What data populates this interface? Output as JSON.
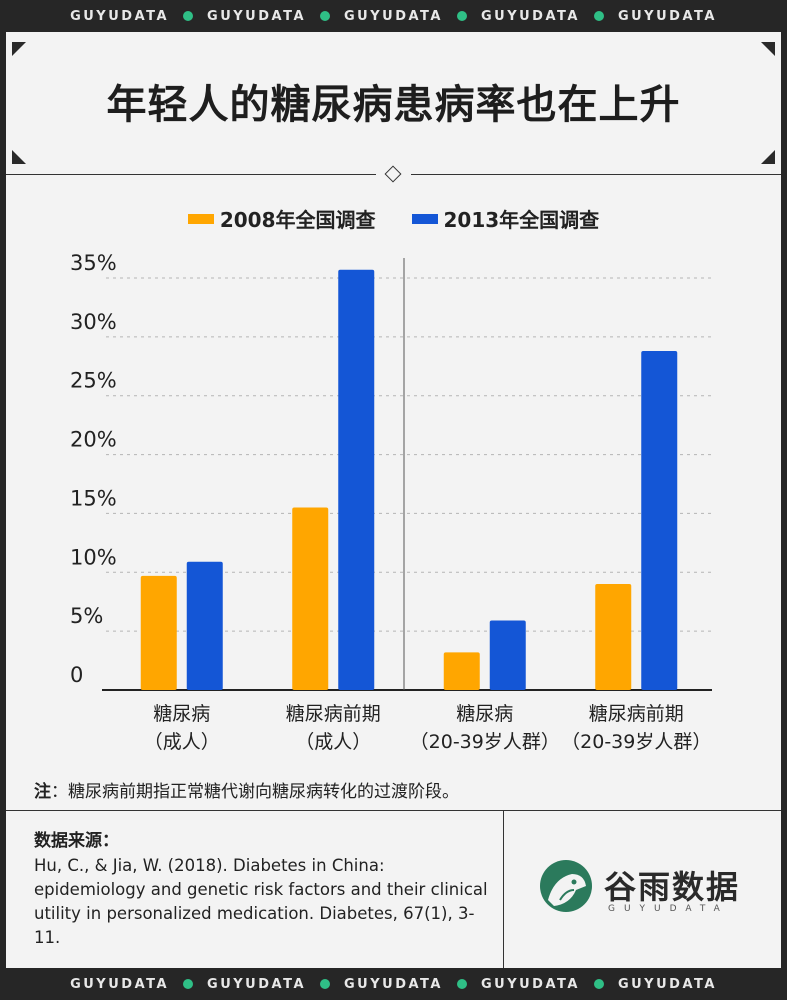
{
  "brand_strip": {
    "word": "GUYUDATA",
    "dot_color": "#2fbf86"
  },
  "title": "年轻人的糖尿病患病率也在上升",
  "legend": [
    {
      "label": "2008年全国调查",
      "color": "#ffa600"
    },
    {
      "label": "2013年全国调查",
      "color": "#1456d6"
    }
  ],
  "chart_data": {
    "type": "bar",
    "title": "年轻人的糖尿病患病率也在上升",
    "categories": [
      [
        "糖尿病",
        "（成人）"
      ],
      [
        "糖尿病前期",
        "（成人）"
      ],
      [
        "糖尿病",
        "（20-39岁人群）"
      ],
      [
        "糖尿病前期",
        "（20-39岁人群）"
      ]
    ],
    "series": [
      {
        "name": "2008年全国调查",
        "color": "#ffa600",
        "values": [
          9.7,
          15.5,
          3.2,
          9.0
        ]
      },
      {
        "name": "2013年全国调查",
        "color": "#1456d6",
        "values": [
          10.9,
          35.7,
          5.9,
          28.8
        ]
      }
    ],
    "y_ticks": [
      "0",
      "5%",
      "10%",
      "15%",
      "20%",
      "25%",
      "30%",
      "35%"
    ],
    "ylim": [
      0,
      35
    ],
    "grid": "dashed horizontal",
    "legend_position": "top-center",
    "group_divider_after_category": 1
  },
  "note": {
    "label": "注",
    "text": "：糖尿病前期指正常糖代谢向糖尿病转化的过渡阶段。"
  },
  "source": {
    "heading": "数据来源：",
    "text": "Hu, C., & Jia, W. (2018). Diabetes in China: epidemiology and genetic risk factors and their clinical utility in personalized medication. Diabetes, 67(1), 3-11."
  },
  "logo": {
    "name": "谷雨数据",
    "sub": "GUYUDATA"
  }
}
